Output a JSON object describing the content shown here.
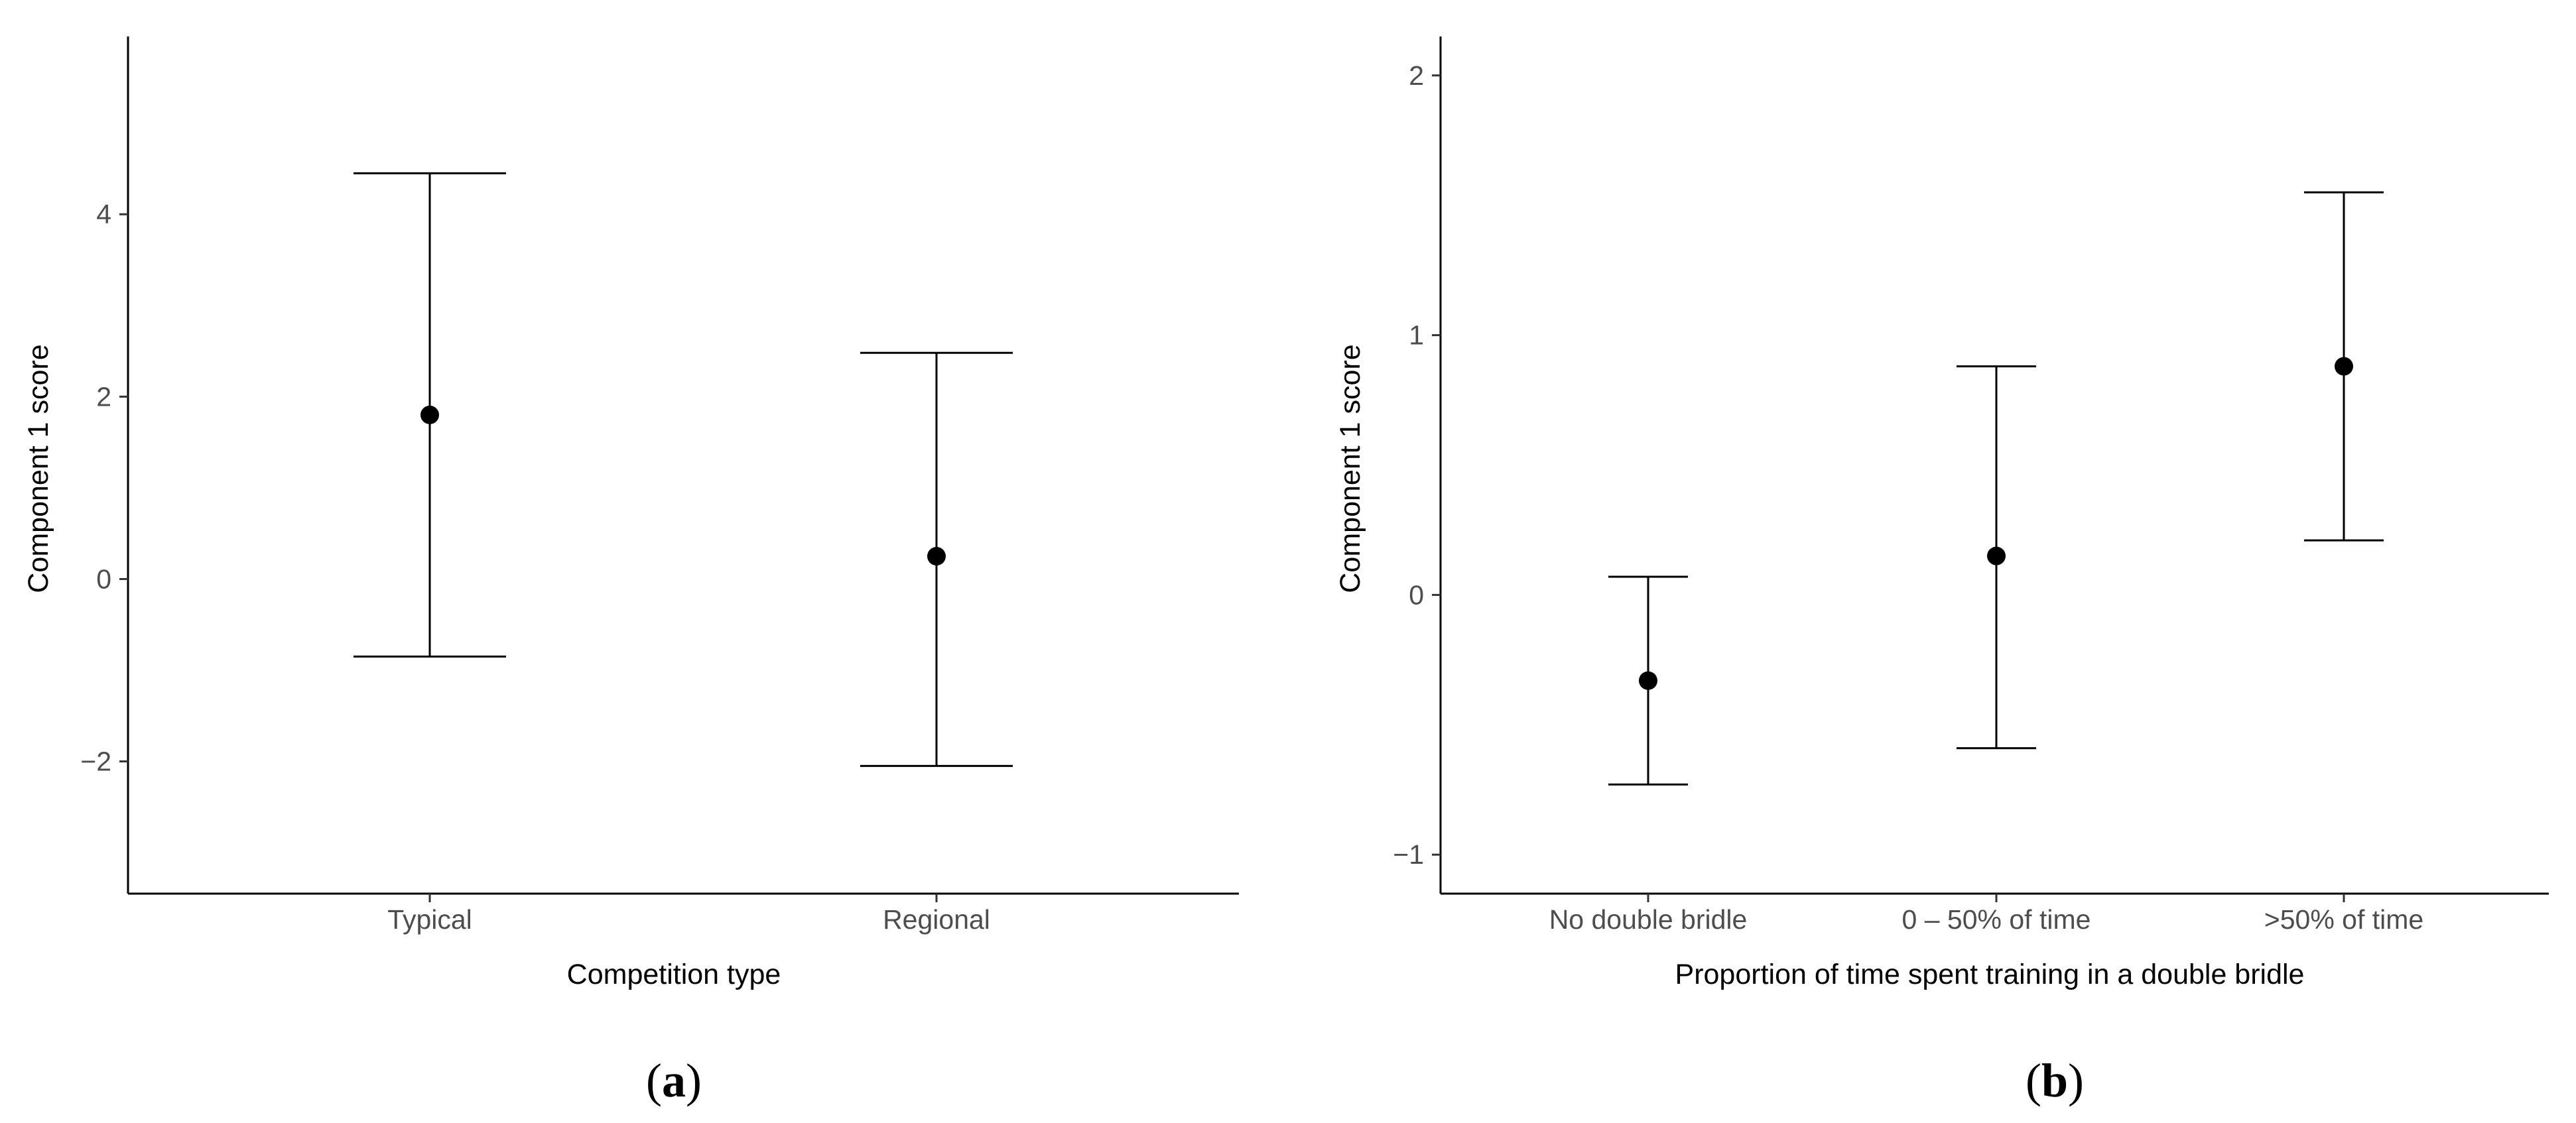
{
  "panels": [
    {
      "label": "(a)",
      "label_letter": "a",
      "chart_data": {
        "type": "scatter",
        "title": "",
        "xlabel": "Competition type",
        "ylabel": "Component 1 score",
        "categories": [
          "Typical",
          "Regional"
        ],
        "points": [
          {
            "category": "Typical",
            "mean": 1.8,
            "lower": -0.85,
            "upper": 4.45
          },
          {
            "category": "Regional",
            "mean": 0.25,
            "lower": -2.05,
            "upper": 2.48
          }
        ],
        "ylim": [
          -3.45,
          5.95
        ],
        "yticks": [
          -2,
          0,
          2,
          4
        ],
        "ytick_labels": [
          "−2",
          "0",
          "2",
          "4"
        ],
        "grid": false,
        "legend": "none"
      }
    },
    {
      "label": "(b)",
      "label_letter": "b",
      "chart_data": {
        "type": "scatter",
        "title": "",
        "xlabel": "Proportion of time spent training in a double bridle",
        "ylabel": "Component 1 score",
        "categories": [
          "No double bridle",
          "0 – 50% of time",
          ">50% of time"
        ],
        "points": [
          {
            "category": "No double bridle",
            "mean": -0.33,
            "lower": -0.73,
            "upper": 0.07
          },
          {
            "category": "0 – 50% of time",
            "mean": 0.15,
            "lower": -0.59,
            "upper": 0.88
          },
          {
            "category": ">50% of time",
            "mean": 0.88,
            "lower": 0.21,
            "upper": 1.55
          }
        ],
        "ylim": [
          -1.15,
          2.15
        ],
        "yticks": [
          -1,
          0,
          1,
          2
        ],
        "ytick_labels": [
          "−1",
          "0",
          "1",
          "2"
        ],
        "grid": false,
        "legend": "none"
      }
    }
  ]
}
